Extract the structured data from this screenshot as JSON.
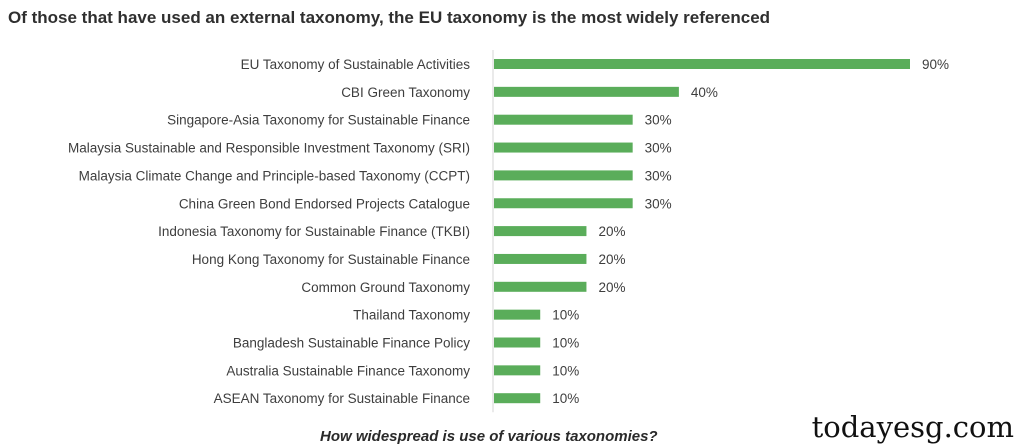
{
  "chart_data": {
    "type": "bar",
    "orientation": "horizontal",
    "title": "Of those that have used an external taxonomy, the EU taxonomy is the most widely referenced",
    "xlabel": "How widespread is use of various taxonomies?",
    "categories": [
      "EU Taxonomy of Sustainable Activities",
      "CBI Green Taxonomy",
      "Singapore-Asia Taxonomy for Sustainable Finance",
      "Malaysia Sustainable and Responsible Investment Taxonomy (SRI)",
      "Malaysia Climate Change and Principle-based Taxonomy (CCPT)",
      "China Green Bond Endorsed Projects Catalogue",
      "Indonesia Taxonomy for Sustainable Finance (TKBI)",
      "Hong Kong Taxonomy for Sustainable Finance",
      "Common Ground Taxonomy",
      "Thailand Taxonomy",
      "Bangladesh Sustainable Finance Policy",
      "Australia Sustainable Finance Taxonomy",
      "ASEAN Taxonomy for Sustainable Finance"
    ],
    "values": [
      90,
      40,
      30,
      30,
      30,
      30,
      20,
      20,
      20,
      10,
      10,
      10,
      10
    ],
    "value_labels": [
      "90%",
      "40%",
      "30%",
      "30%",
      "30%",
      "30%",
      "20%",
      "20%",
      "20%",
      "10%",
      "10%",
      "10%",
      "10%"
    ],
    "xlim": [
      0,
      90
    ],
    "grid": false,
    "legend": "none",
    "bar_color": "#5aad5a",
    "axis_color": "#d4d4d4"
  },
  "watermark": "todayesg.com"
}
